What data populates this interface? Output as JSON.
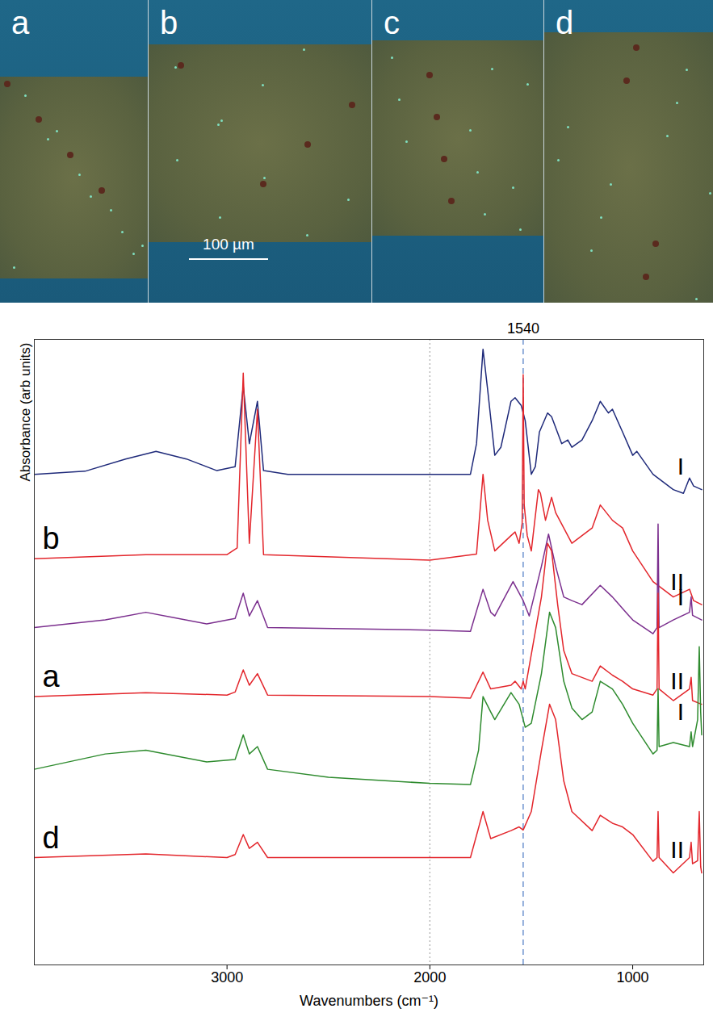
{
  "micrographs": {
    "panels": [
      "a",
      "b",
      "c",
      "d"
    ],
    "scale_bar": "100 µm"
  },
  "chart_data": {
    "type": "line",
    "x_label": "Wavenumbers (cm⁻¹)",
    "y_label": "Absorbance (arb units)",
    "xlim": [
      3950,
      650
    ],
    "xticks": [
      3000,
      2000,
      1000
    ],
    "ylim": [
      0,
      102
    ],
    "tick_labels": "x",
    "annotations": [
      {
        "x": 1540,
        "label": "1540",
        "color": "#4a78c4",
        "line_style": "dashed"
      },
      {
        "x": 2000,
        "color": "#aaaaaa",
        "line_style": "dotted"
      }
    ],
    "series": [
      {
        "sample": "b",
        "region": "I",
        "color": "#1f2a7a",
        "x": [
          3950,
          3700,
          3500,
          3350,
          3200,
          3050,
          2960,
          2920,
          2890,
          2850,
          2820,
          2700,
          2000,
          1800,
          1770,
          1738,
          1715,
          1680,
          1650,
          1600,
          1580,
          1550,
          1530,
          1500,
          1480,
          1460,
          1420,
          1400,
          1350,
          1320,
          1300,
          1250,
          1200,
          1160,
          1120,
          1100,
          1050,
          1000,
          980,
          900,
          800,
          750,
          720,
          700,
          660
        ],
        "values": [
          80,
          80.5,
          82.5,
          83.75,
          82.5,
          80.6,
          81.25,
          94.4,
          85,
          91.9,
          80.6,
          80,
          80,
          80,
          85,
          100.4,
          93.75,
          83.1,
          84.4,
          91.9,
          92.5,
          91.25,
          88.75,
          80,
          81.25,
          86.9,
          90,
          89.4,
          85,
          85.6,
          84.4,
          85.6,
          88.75,
          91.9,
          90,
          90.6,
          86.9,
          83.1,
          83.75,
          80,
          77.5,
          76.9,
          79.4,
          78.1,
          77.5
        ]
      },
      {
        "sample": "b",
        "region": "II",
        "color": "#e3262c",
        "x": [
          3950,
          3400,
          3000,
          2950,
          2920,
          2890,
          2850,
          2820,
          2000,
          1770,
          1738,
          1715,
          1680,
          1600,
          1580,
          1560,
          1545,
          1540,
          1535,
          1520,
          1500,
          1465,
          1455,
          1430,
          1400,
          1380,
          1300,
          1250,
          1200,
          1160,
          1100,
          1050,
          1000,
          900,
          800,
          720,
          700,
          660
        ],
        "values": [
          66.25,
          66.9,
          66.9,
          68,
          96.5,
          68.75,
          90.6,
          66.9,
          66,
          67,
          80,
          72.5,
          67.5,
          70,
          70.6,
          68.75,
          72,
          96.25,
          75,
          70,
          67.5,
          77.5,
          76.9,
          72.5,
          76.25,
          73.75,
          68.75,
          70,
          71.25,
          75,
          72.5,
          71.25,
          67.5,
          62.5,
          60,
          61.25,
          59.4,
          58.75
        ]
      },
      {
        "sample": "a",
        "region": "I",
        "color": "#7b2f8e",
        "x": [
          3950,
          3600,
          3400,
          3100,
          2960,
          2920,
          2890,
          2850,
          2800,
          2000,
          1800,
          1738,
          1700,
          1680,
          1590,
          1540,
          1510,
          1450,
          1415,
          1380,
          1340,
          1300,
          1250,
          1160,
          1100,
          1050,
          1000,
          900,
          880,
          875,
          870,
          800,
          720,
          712,
          705,
          660
        ],
        "values": [
          55,
          56.25,
          57.5,
          55.6,
          56.5,
          60.6,
          56.9,
          59.4,
          55,
          54.6,
          54.4,
          61.25,
          57.5,
          56.9,
          62.5,
          59.4,
          56.9,
          65,
          70.25,
          65,
          60,
          59.4,
          58.75,
          61.9,
          60,
          58.1,
          56.25,
          54,
          55,
          71.9,
          55,
          56.25,
          57.5,
          60,
          57,
          56.25
        ]
      },
      {
        "sample": "a",
        "region": "II",
        "color": "#e3262c",
        "x": [
          3950,
          3400,
          3000,
          2960,
          2920,
          2890,
          2850,
          2800,
          2000,
          1800,
          1738,
          1700,
          1600,
          1580,
          1550,
          1540,
          1530,
          1450,
          1420,
          1400,
          1370,
          1340,
          1300,
          1200,
          1160,
          1100,
          1050,
          1000,
          900,
          880,
          875,
          870,
          800,
          720,
          712,
          705,
          660
        ],
        "values": [
          43.75,
          44.4,
          44,
          44.5,
          48.1,
          45.6,
          47.5,
          44,
          43.75,
          43.5,
          47.75,
          45,
          45.6,
          46.25,
          45,
          46.25,
          45,
          60,
          68.75,
          67.5,
          58.75,
          51.25,
          47.5,
          46.25,
          48.75,
          47.25,
          46.25,
          45,
          44,
          45,
          60.6,
          45,
          43.1,
          45,
          46.9,
          43.1,
          42.5
        ]
      },
      {
        "sample": "d",
        "region": "I",
        "color": "#2e8b2e",
        "x": [
          3950,
          3600,
          3400,
          3100,
          2960,
          2920,
          2890,
          2850,
          2800,
          2500,
          2000,
          1800,
          1760,
          1738,
          1700,
          1680,
          1600,
          1560,
          1530,
          1500,
          1450,
          1410,
          1380,
          1340,
          1300,
          1250,
          1200,
          1160,
          1100,
          1050,
          1000,
          900,
          880,
          875,
          870,
          800,
          720,
          712,
          705,
          680,
          672,
          665,
          660
        ],
        "values": [
          31.9,
          34.4,
          35,
          33.1,
          33.5,
          37.5,
          34.4,
          35.6,
          31.9,
          30.6,
          29.6,
          29.4,
          35,
          43.75,
          41.25,
          40,
          44.4,
          42.5,
          38.75,
          39.4,
          47.5,
          57.5,
          55,
          46.25,
          41.9,
          40,
          41.25,
          46.25,
          45,
          42.5,
          39.4,
          34.4,
          35,
          45,
          35.6,
          36.25,
          35.6,
          38,
          35.6,
          40,
          51.9,
          41.25,
          37.5
        ]
      },
      {
        "sample": "d",
        "region": "II",
        "color": "#e3262c",
        "x": [
          3950,
          3400,
          3000,
          2960,
          2920,
          2890,
          2850,
          2800,
          2000,
          1800,
          1738,
          1700,
          1600,
          1560,
          1540,
          1500,
          1450,
          1410,
          1380,
          1340,
          1300,
          1200,
          1160,
          1100,
          1050,
          1000,
          900,
          880,
          875,
          870,
          800,
          720,
          712,
          705,
          680,
          672,
          665,
          660
        ],
        "values": [
          17.5,
          18.1,
          17.5,
          18,
          21.25,
          19,
          20,
          17.5,
          17.5,
          17.5,
          25,
          20.6,
          21.9,
          22.5,
          22,
          25,
          35,
          42.5,
          40,
          30,
          25,
          21.9,
          24.4,
          23.1,
          22.5,
          21.25,
          16.9,
          17.5,
          25,
          17.5,
          15,
          17.5,
          20,
          16.5,
          17,
          25,
          16,
          15
        ]
      }
    ]
  }
}
